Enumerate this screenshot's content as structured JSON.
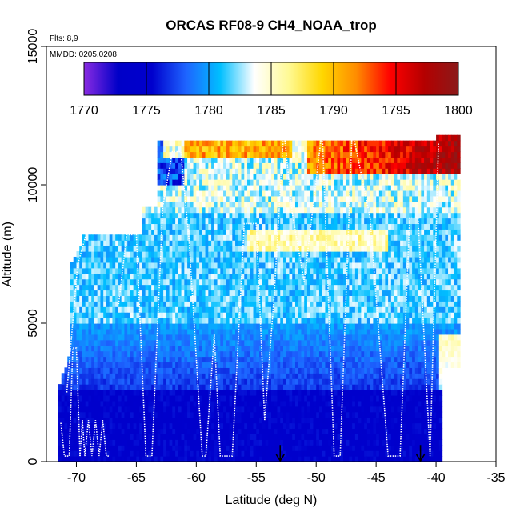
{
  "chart_data": {
    "type": "heatmap",
    "title": "ORCAS RF08-9 CH4_NOAA_trop",
    "annotations": [
      "Flts: 8,9",
      "MMDD: 0205,0208"
    ],
    "xlabel": "Latitude (deg N)",
    "ylabel": "Altitude (m)",
    "xlim": [
      -72.5,
      -35
    ],
    "ylim": [
      0,
      15000
    ],
    "x_ticks": [
      -70,
      -65,
      -60,
      -55,
      -50,
      -45,
      -40,
      -35
    ],
    "x_tick_labels": [
      "-70",
      "-65",
      "-60",
      "-55",
      "-50",
      "-45",
      "-40",
      "-35"
    ],
    "y_ticks": [
      0,
      5000,
      10000,
      15000
    ],
    "y_tick_labels": [
      "0",
      "5000",
      "10000",
      "15000"
    ],
    "colorbar": {
      "min": 1770,
      "max": 1800,
      "ticks": [
        1770,
        1775,
        1780,
        1785,
        1790,
        1795,
        1800
      ],
      "tick_labels": [
        "1770",
        "1775",
        "1780",
        "1785",
        "1790",
        "1795",
        "1800"
      ],
      "colors": [
        "#8a2be2",
        "#0000c8",
        "#0000cd",
        "#1e64ff",
        "#00bfff",
        "#ffffff",
        "#fffa96",
        "#ffd700",
        "#ff8c00",
        "#ff0000",
        "#b40000",
        "#8b1a1a"
      ]
    },
    "markers": [
      {
        "type": "arrow-down",
        "x": -53,
        "y": 600
      },
      {
        "type": "arrow-down",
        "x": -41.3,
        "y": 600
      }
    ],
    "profile_legs": [
      {
        "name": "leg",
        "x": [
          -71.3,
          -71.0,
          -70.6,
          -70.3,
          -70.0,
          -69.7
        ],
        "y": [
          1400,
          200,
          200,
          4100,
          4100,
          200
        ]
      },
      {
        "name": "leg",
        "x": [
          -69.7,
          -69.5,
          -69.3,
          -69.0,
          -68.7,
          -68.4,
          -68.1,
          -67.8,
          -67.5,
          -67.2
        ],
        "y": [
          200,
          1500,
          200,
          1500,
          200,
          1500,
          200,
          1500,
          200,
          200
        ]
      },
      {
        "name": "leg",
        "x": [
          -70.8,
          -69.9,
          -69.2
        ],
        "y": [
          2500,
          7100,
          8200
        ]
      },
      {
        "name": "leg",
        "x": [
          -66.5,
          -65.8,
          -65.0,
          -64.2,
          -63.7
        ],
        "y": [
          5600,
          8200,
          8200,
          200,
          200
        ]
      },
      {
        "name": "leg",
        "x": [
          -63.7,
          -62.8,
          -62.0,
          -61.3,
          -60.6
        ],
        "y": [
          200,
          9200,
          11200,
          11200,
          8000
        ]
      },
      {
        "name": "leg",
        "x": [
          -60.6,
          -59.5,
          -59.2,
          -58.5,
          -58.0,
          -57.0,
          -56.0,
          -55.0,
          -54.3
        ],
        "y": [
          8000,
          200,
          200,
          4600,
          200,
          200,
          8600,
          8600,
          1500
        ]
      },
      {
        "name": "leg",
        "x": [
          -54.3,
          -53.5,
          -52.7,
          -52.0
        ],
        "y": [
          1500,
          6000,
          12000,
          9000
        ]
      },
      {
        "name": "leg",
        "x": [
          -52.0,
          -51.0,
          -49.5,
          -48.5,
          -48.0,
          -47.0
        ],
        "y": [
          9000,
          6500,
          12000,
          200,
          200,
          12000
        ]
      },
      {
        "name": "leg",
        "x": [
          -47.0,
          -45.5,
          -44.0,
          -43.0,
          -42.2,
          -41.5,
          -40.5,
          -39.8
        ],
        "y": [
          12000,
          8800,
          200,
          200,
          8800,
          8800,
          200,
          11500
        ]
      }
    ]
  }
}
